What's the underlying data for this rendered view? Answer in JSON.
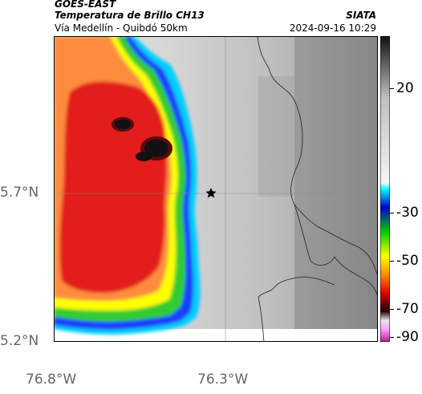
{
  "header": {
    "product": "GOES-EAST",
    "title": "Temperatura de Brillo CH13",
    "organization": "SIATA",
    "subtitle": "Vía Medellín - Quibdó 50km",
    "datetime": "2024-09-16 10:29"
  },
  "map": {
    "lat_labels": [
      "5.7°N",
      "5.2°N"
    ],
    "lon_labels": [
      "76.8°W",
      "76.3°W"
    ],
    "marker_icon": "star-icon",
    "colors": {
      "cold_core": "#111111",
      "red": "#e31a1c",
      "orange": "#fd8d3c",
      "yellow": "#ffff00",
      "green": "#33cc33",
      "blue": "#1f3cff",
      "cyan": "#40e0ff",
      "warm_gray_light": "#e6e6e6",
      "warm_gray_dark": "#8c8c8c"
    }
  },
  "colorbar": {
    "labels": [
      "20",
      "-30",
      "-50",
      "-70",
      "-90"
    ],
    "colors": [
      "#111111",
      "#bfbfbf",
      "#f5f5f5",
      "#00ffff",
      "#0000cc",
      "#00cc00",
      "#ffff00",
      "#ff8c00",
      "#e00000",
      "#200000",
      "#ff99ff",
      "#b0208f"
    ]
  }
}
